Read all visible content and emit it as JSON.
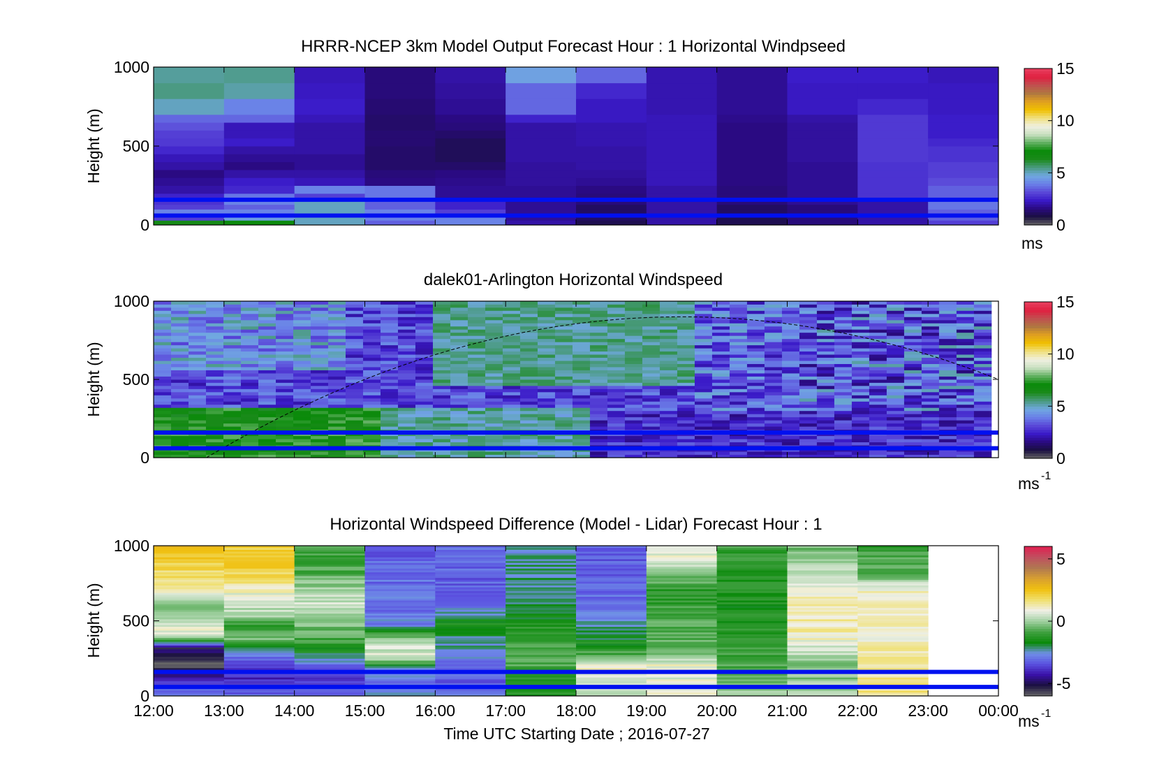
{
  "figure": {
    "xlabel": "Time UTC  Starting Date ; 2016-07-27",
    "xticks": [
      "12:00",
      "13:00",
      "14:00",
      "15:00",
      "16:00",
      "17:00",
      "18:00",
      "19:00",
      "20:00",
      "21:00",
      "22:00",
      "23:00",
      "00:00"
    ],
    "colors": {
      "band_line": "#0010f0",
      "speed_colormap": [
        "#666666",
        "#1a1040",
        "#2a0a80",
        "#3a1ac8",
        "#5a48d8",
        "#6a80e8",
        "#70a8e0",
        "#4a9a80",
        "#1a8a1a",
        "#0a8a0a",
        "#60b060",
        "#c8e0c0",
        "#f0f0e0",
        "#f0e080",
        "#f0c000",
        "#e0a020",
        "#b07840",
        "#c05050",
        "#e02040",
        "#e84060"
      ],
      "diff_colormap": [
        "#666666",
        "#1a1040",
        "#3a10a8",
        "#5a50e0",
        "#7090e8",
        "#0a8a0a",
        "#40a040",
        "#a0d0a0",
        "#f0f0e8",
        "#f0e070",
        "#f0c010",
        "#d8a030",
        "#b07850",
        "#c05060",
        "#e02050"
      ]
    }
  },
  "chart_data": [
    {
      "type": "heatmap",
      "title": "HRRR-NCEP 3km Model Output   Forecast Hour : 1 Horizontal Windpseed",
      "xlabel": "",
      "ylabel": "Height (m)",
      "ylim": [
        0,
        1000
      ],
      "yticks": [
        "0",
        "500",
        "1000"
      ],
      "x_start": "12:00",
      "x_step_hours": 1,
      "row_edges_m": [
        0,
        30,
        60,
        100,
        130,
        160,
        200,
        250,
        300,
        350,
        400,
        450,
        500,
        550,
        600,
        650,
        700,
        800,
        900,
        1000
      ],
      "note_speeds": "values in m/s per hourly column (12:00-23:00), rows from bottom (0 m) to top (1000 m); 23:00-00:00 empty",
      "z": [
        [
          6.5,
          7.0,
          5.0,
          3.5,
          4.0,
          2.0,
          1.0,
          2.0,
          1.0,
          1.5,
          2.0,
          3.0
        ],
        [
          3.0,
          4.5,
          5.0,
          4.0,
          4.0,
          1.8,
          1.2,
          2.0,
          1.0,
          1.5,
          2.0,
          3.5
        ],
        [
          4.0,
          4.0,
          5.0,
          4.0,
          3.0,
          1.8,
          1.2,
          2.0,
          1.2,
          1.5,
          2.0,
          3.5
        ],
        [
          3.0,
          3.5,
          5.0,
          3.5,
          2.5,
          1.8,
          1.2,
          2.0,
          1.2,
          1.5,
          2.0,
          3.8
        ],
        [
          2.8,
          4.0,
          5.0,
          3.5,
          2.5,
          1.8,
          1.5,
          2.0,
          1.5,
          1.8,
          2.0,
          3.8
        ],
        [
          2.5,
          3.8,
          3.0,
          3.8,
          1.8,
          1.8,
          1.5,
          2.0,
          1.5,
          1.8,
          2.8,
          3.5
        ],
        [
          2.0,
          2.6,
          4.0,
          3.8,
          1.8,
          1.8,
          1.6,
          2.0,
          1.5,
          1.8,
          2.8,
          3.5
        ],
        [
          1.8,
          2.4,
          2.2,
          1.6,
          1.7,
          1.9,
          1.8,
          2.2,
          1.6,
          1.8,
          2.8,
          3.2
        ],
        [
          1.6,
          2.0,
          2.0,
          1.5,
          1.6,
          1.9,
          1.9,
          2.2,
          1.6,
          1.8,
          2.8,
          3.0
        ],
        [
          2.0,
          1.6,
          1.8,
          1.3,
          1.3,
          1.9,
          2.0,
          2.2,
          1.6,
          1.8,
          2.8,
          3.0
        ],
        [
          2.2,
          1.8,
          1.8,
          1.3,
          1.1,
          2.0,
          2.0,
          2.2,
          1.6,
          1.9,
          2.9,
          2.8
        ],
        [
          2.6,
          2.0,
          2.0,
          1.3,
          1.1,
          2.0,
          2.0,
          2.2,
          1.6,
          1.9,
          2.9,
          2.8
        ],
        [
          2.9,
          2.4,
          2.0,
          1.4,
          1.1,
          2.0,
          2.1,
          2.2,
          1.6,
          1.9,
          2.9,
          2.6
        ],
        [
          3.0,
          2.2,
          2.0,
          1.4,
          1.3,
          2.0,
          2.1,
          2.2,
          1.6,
          1.9,
          2.9,
          2.4
        ],
        [
          3.3,
          2.2,
          2.0,
          1.3,
          1.5,
          2.0,
          2.1,
          2.2,
          1.6,
          1.9,
          2.9,
          2.4
        ],
        [
          3.6,
          3.6,
          2.2,
          1.3,
          1.6,
          2.5,
          2.3,
          2.2,
          1.7,
          2.0,
          2.9,
          2.4
        ],
        [
          5.0,
          4.0,
          2.4,
          1.4,
          1.8,
          3.6,
          2.3,
          2.1,
          1.8,
          2.3,
          2.6,
          2.3
        ],
        [
          5.5,
          5.2,
          2.3,
          1.5,
          1.9,
          3.6,
          2.6,
          2.1,
          1.8,
          2.3,
          2.3,
          2.3
        ],
        [
          5.3,
          5.4,
          2.2,
          1.5,
          2.0,
          4.6,
          3.6,
          2.1,
          1.8,
          2.4,
          2.4,
          2.2
        ]
      ],
      "band_lines_m": [
        60,
        160
      ],
      "colorbar": {
        "label": "ms",
        "ticks": [
          "0",
          "5",
          "10",
          "15"
        ],
        "range": [
          0,
          15
        ]
      }
    },
    {
      "type": "heatmap",
      "title": "dalek01-Arlington  Horizontal Windspeed",
      "xlabel": "",
      "ylabel": "Height (m)",
      "ylim": [
        0,
        1000
      ],
      "yticks": [
        "0",
        "500",
        "1000"
      ],
      "x_start": "12:00",
      "x_step_hours": 1,
      "time_columns": 48,
      "rows": 50,
      "band_lines_m": [
        60,
        160
      ],
      "overlay_curve": {
        "style": "dashed",
        "peak_height_m": 900,
        "peak_time": "19:30"
      },
      "colorbar": {
        "label": "ms",
        "label_sup": "-1",
        "ticks": [
          "0",
          "5",
          "10",
          "15"
        ],
        "range": [
          0,
          15
        ]
      }
    },
    {
      "type": "heatmap",
      "title": "Horizontal Windspeed Difference (Model - Lidar) Forecast Hour : 1",
      "xlabel": "Time UTC  Starting Date ; 2016-07-27",
      "ylabel": "Height (m)",
      "ylim": [
        0,
        1000
      ],
      "yticks": [
        "0",
        "500",
        "1000"
      ],
      "x_start": "12:00",
      "x_step_hours": 1,
      "band_lines_m": [
        60,
        160
      ],
      "column_profiles_from_bottom": [
        [
          [
            0,
            -2.5
          ],
          [
            100,
            -4
          ],
          [
            200,
            -6
          ],
          [
            260,
            -5
          ],
          [
            320,
            -5
          ],
          [
            400,
            0.8
          ],
          [
            460,
            0.8
          ],
          [
            520,
            0.2
          ],
          [
            580,
            -0.6
          ],
          [
            700,
            1.2
          ],
          [
            900,
            2.2
          ],
          [
            1000,
            2.8
          ]
        ],
        [
          [
            0,
            -3
          ],
          [
            120,
            -4
          ],
          [
            200,
            -3.5
          ],
          [
            300,
            -2.5
          ],
          [
            380,
            -0.4
          ],
          [
            460,
            -1.2
          ],
          [
            540,
            0.1
          ],
          [
            650,
            0.6
          ],
          [
            800,
            2.0
          ],
          [
            1000,
            2.2
          ]
        ],
        [
          [
            0,
            -3
          ],
          [
            120,
            -4
          ],
          [
            200,
            -3
          ],
          [
            300,
            -1.5
          ],
          [
            420,
            -0.6
          ],
          [
            600,
            0.5
          ],
          [
            700,
            0.2
          ],
          [
            820,
            -0.8
          ],
          [
            1000,
            -1
          ]
        ],
        [
          [
            0,
            -2.5
          ],
          [
            100,
            -3
          ],
          [
            180,
            -2.5
          ],
          [
            260,
            0.5
          ],
          [
            350,
            0.5
          ],
          [
            480,
            -2.8
          ],
          [
            700,
            -3.0
          ],
          [
            1000,
            -3.2
          ]
        ],
        [
          [
            0,
            -3
          ],
          [
            120,
            -3.2
          ],
          [
            300,
            -2.5
          ],
          [
            500,
            -1.5
          ],
          [
            600,
            -3
          ],
          [
            800,
            -3.2
          ],
          [
            1000,
            -3
          ]
        ],
        [
          [
            0,
            -1.5
          ],
          [
            200,
            -0.8
          ],
          [
            400,
            -1.0
          ],
          [
            600,
            -2.0
          ],
          [
            800,
            -2.2
          ],
          [
            1000,
            -2.4
          ]
        ],
        [
          [
            0,
            0.4
          ],
          [
            200,
            1.2
          ],
          [
            260,
            -0.6
          ],
          [
            400,
            -2.0
          ],
          [
            600,
            -3.0
          ],
          [
            900,
            -3.2
          ],
          [
            1000,
            -3.0
          ]
        ],
        [
          [
            0,
            1.2
          ],
          [
            140,
            0.6
          ],
          [
            200,
            1.0
          ],
          [
            300,
            -0.5
          ],
          [
            500,
            -0.8
          ],
          [
            700,
            -1.2
          ],
          [
            900,
            0.5
          ],
          [
            1000,
            1.2
          ]
        ],
        [
          [
            0,
            0.2
          ],
          [
            200,
            -0.8
          ],
          [
            400,
            -1.2
          ],
          [
            600,
            -1.5
          ],
          [
            800,
            -1.3
          ],
          [
            1000,
            -1.0
          ]
        ],
        [
          [
            0,
            0.2
          ],
          [
            200,
            -0.4
          ],
          [
            400,
            1.2
          ],
          [
            600,
            1.3
          ],
          [
            800,
            0.6
          ],
          [
            1000,
            -0.5
          ]
        ],
        [
          [
            0,
            1.5
          ],
          [
            200,
            1.4
          ],
          [
            400,
            1.1
          ],
          [
            600,
            1.0
          ],
          [
            700,
            1.2
          ],
          [
            800,
            -0.6
          ],
          [
            1000,
            -1.0
          ]
        ]
      ],
      "colorbar": {
        "label": "ms",
        "label_sup": "-1",
        "ticks": [
          "-5",
          "0",
          "5"
        ],
        "range": [
          -6,
          6
        ]
      }
    }
  ]
}
